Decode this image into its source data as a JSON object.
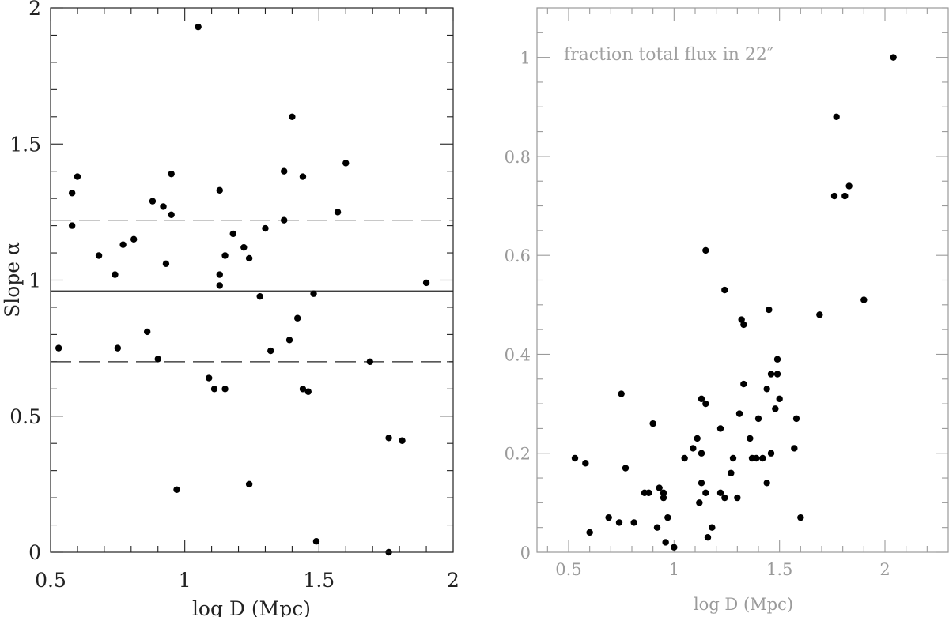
{
  "chart_data": [
    {
      "type": "scatter",
      "xlabel": "log D (Mpc)",
      "ylabel": "Slope α",
      "xlim": [
        0.5,
        2.0
      ],
      "ylim": [
        0,
        2.0
      ],
      "xticks": [
        "0.5",
        "1",
        "1.5",
        "2"
      ],
      "yticks": [
        "0",
        "0.5",
        "1",
        "1.5",
        "2"
      ],
      "reference_lines": [
        {
          "y": 0.96,
          "style": "solid"
        },
        {
          "y": 1.22,
          "style": "dashed"
        },
        {
          "y": 0.7,
          "style": "dashed"
        }
      ],
      "points": [
        [
          0.53,
          0.75
        ],
        [
          0.58,
          1.32
        ],
        [
          0.58,
          1.2
        ],
        [
          0.6,
          1.38
        ],
        [
          0.68,
          1.09
        ],
        [
          0.74,
          1.02
        ],
        [
          0.75,
          0.75
        ],
        [
          0.77,
          1.13
        ],
        [
          0.81,
          1.15
        ],
        [
          0.86,
          0.81
        ],
        [
          0.88,
          1.29
        ],
        [
          0.9,
          0.71
        ],
        [
          0.92,
          1.27
        ],
        [
          0.93,
          1.06
        ],
        [
          0.95,
          1.39
        ],
        [
          0.95,
          1.24
        ],
        [
          0.97,
          0.23
        ],
        [
          1.05,
          1.93
        ],
        [
          1.09,
          0.64
        ],
        [
          1.11,
          0.6
        ],
        [
          1.13,
          1.33
        ],
        [
          1.13,
          1.02
        ],
        [
          1.13,
          0.98
        ],
        [
          1.15,
          1.09
        ],
        [
          1.15,
          0.6
        ],
        [
          1.18,
          1.17
        ],
        [
          1.22,
          1.12
        ],
        [
          1.24,
          1.08
        ],
        [
          1.24,
          0.25
        ],
        [
          1.28,
          0.94
        ],
        [
          1.3,
          1.19
        ],
        [
          1.32,
          0.74
        ],
        [
          1.37,
          1.4
        ],
        [
          1.37,
          1.22
        ],
        [
          1.39,
          0.78
        ],
        [
          1.4,
          1.6
        ],
        [
          1.42,
          0.86
        ],
        [
          1.44,
          1.38
        ],
        [
          1.44,
          0.6
        ],
        [
          1.46,
          0.59
        ],
        [
          1.48,
          0.95
        ],
        [
          1.49,
          0.04
        ],
        [
          1.57,
          1.25
        ],
        [
          1.6,
          1.43
        ],
        [
          1.69,
          0.7
        ],
        [
          1.76,
          0.42
        ],
        [
          1.76,
          0.0
        ],
        [
          1.81,
          0.41
        ],
        [
          1.9,
          0.99
        ]
      ]
    },
    {
      "type": "scatter",
      "title": "fraction total flux in 22″",
      "xlabel": "log D (Mpc)",
      "ylabel": "",
      "xlim": [
        0.35,
        2.3
      ],
      "ylim": [
        0,
        1.1
      ],
      "xticks": [
        "0.5",
        "1",
        "1.5",
        "2"
      ],
      "yticks": [
        "0",
        "0.2",
        "0.4",
        "0.6",
        "0.8",
        "1"
      ],
      "points": [
        [
          0.53,
          0.19
        ],
        [
          0.58,
          0.18
        ],
        [
          0.6,
          0.04
        ],
        [
          0.69,
          0.07
        ],
        [
          0.74,
          0.06
        ],
        [
          0.75,
          0.32
        ],
        [
          0.77,
          0.17
        ],
        [
          0.81,
          0.06
        ],
        [
          0.86,
          0.12
        ],
        [
          0.88,
          0.12
        ],
        [
          0.9,
          0.26
        ],
        [
          0.92,
          0.05
        ],
        [
          0.93,
          0.13
        ],
        [
          0.95,
          0.12
        ],
        [
          0.95,
          0.11
        ],
        [
          0.96,
          0.02
        ],
        [
          0.97,
          0.07
        ],
        [
          1.0,
          0.01
        ],
        [
          1.05,
          0.19
        ],
        [
          1.09,
          0.21
        ],
        [
          1.11,
          0.23
        ],
        [
          1.12,
          0.1
        ],
        [
          1.13,
          0.2
        ],
        [
          1.13,
          0.14
        ],
        [
          1.13,
          0.31
        ],
        [
          1.15,
          0.61
        ],
        [
          1.15,
          0.3
        ],
        [
          1.15,
          0.12
        ],
        [
          1.16,
          0.03
        ],
        [
          1.18,
          0.05
        ],
        [
          1.22,
          0.12
        ],
        [
          1.22,
          0.25
        ],
        [
          1.24,
          0.53
        ],
        [
          1.24,
          0.11
        ],
        [
          1.27,
          0.16
        ],
        [
          1.28,
          0.19
        ],
        [
          1.3,
          0.11
        ],
        [
          1.31,
          0.28
        ],
        [
          1.32,
          0.47
        ],
        [
          1.33,
          0.46
        ],
        [
          1.33,
          0.34
        ],
        [
          1.36,
          0.23
        ],
        [
          1.37,
          0.19
        ],
        [
          1.39,
          0.19
        ],
        [
          1.4,
          0.27
        ],
        [
          1.42,
          0.19
        ],
        [
          1.44,
          0.33
        ],
        [
          1.44,
          0.14
        ],
        [
          1.45,
          0.49
        ],
        [
          1.46,
          0.36
        ],
        [
          1.46,
          0.2
        ],
        [
          1.48,
          0.29
        ],
        [
          1.49,
          0.39
        ],
        [
          1.49,
          0.36
        ],
        [
          1.5,
          0.31
        ],
        [
          1.57,
          0.21
        ],
        [
          1.58,
          0.27
        ],
        [
          1.6,
          0.07
        ],
        [
          1.69,
          0.48
        ],
        [
          1.76,
          0.72
        ],
        [
          1.77,
          0.88
        ],
        [
          1.81,
          0.72
        ],
        [
          1.83,
          0.74
        ],
        [
          1.9,
          0.51
        ],
        [
          2.04,
          1.0
        ]
      ]
    }
  ]
}
